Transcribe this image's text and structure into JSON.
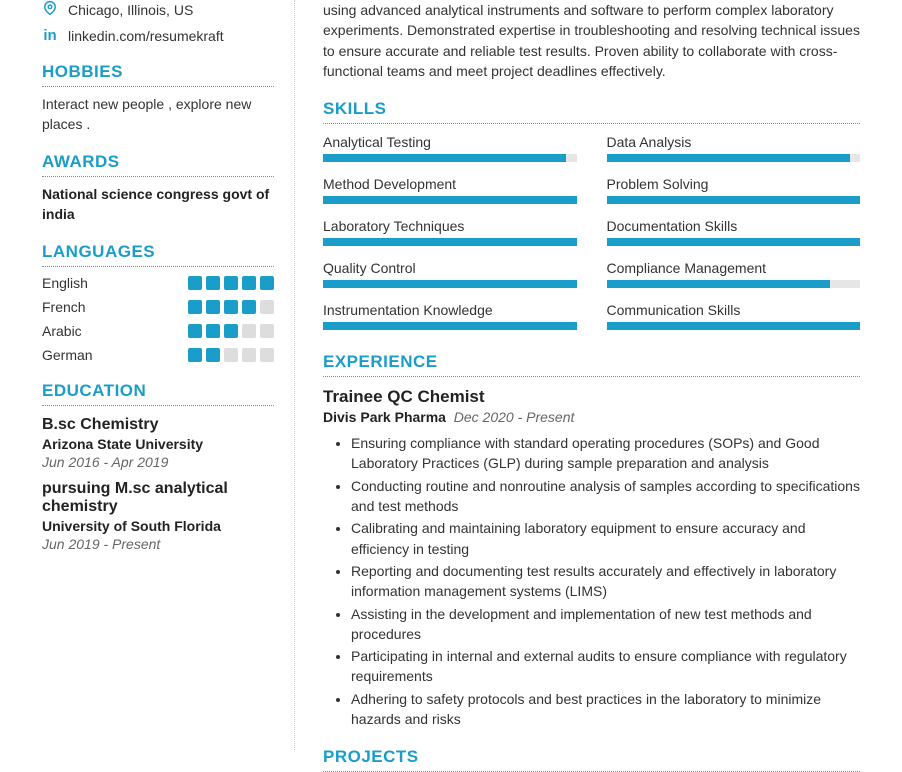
{
  "colors": {
    "accent": "#1b9dc9",
    "text": "#333",
    "muted": "#666",
    "bar_bg": "#e6e6e6"
  },
  "contact": {
    "location": "Chicago, Illinois, US",
    "linkedin": "linkedin.com/resumekraft"
  },
  "sections": {
    "hobbies": "HOBBIES",
    "awards": "AWARDS",
    "languages": "LANGUAGES",
    "education": "EDUCATION",
    "skills": "SKILLS",
    "experience": "EXPERIENCE",
    "projects": "PROJECTS"
  },
  "hobbies_text": "Interact new people , explore new places .",
  "awards": [
    {
      "title": "National science congress govt of india"
    }
  ],
  "languages": [
    {
      "name": "English",
      "level": 5
    },
    {
      "name": "French",
      "level": 4
    },
    {
      "name": "Arabic",
      "level": 3
    },
    {
      "name": "German",
      "level": 2
    }
  ],
  "lang_max": 5,
  "education": [
    {
      "degree": "B.sc Chemistry",
      "school": "Arizona State University",
      "dates": "Jun 2016 - Apr 2019"
    },
    {
      "degree": "pursuing M.sc analytical chemistry",
      "school": "University of South Florida",
      "dates": "Jun 2019 - Present"
    }
  ],
  "summary": "using advanced analytical instruments and software to perform complex laboratory experiments. Demonstrated expertise in troubleshooting and resolving technical issues to ensure accurate and reliable test results. Proven ability to collaborate with cross-functional teams and meet project deadlines effectively.",
  "skills": [
    {
      "name": "Analytical Testing",
      "pct": 96
    },
    {
      "name": "Data Analysis",
      "pct": 96
    },
    {
      "name": "Method Development",
      "pct": 100
    },
    {
      "name": "Problem Solving",
      "pct": 100
    },
    {
      "name": "Laboratory Techniques",
      "pct": 100
    },
    {
      "name": "Documentation Skills",
      "pct": 100
    },
    {
      "name": "Quality Control",
      "pct": 100
    },
    {
      "name": "Compliance Management",
      "pct": 88
    },
    {
      "name": "Instrumentation Knowledge",
      "pct": 100
    },
    {
      "name": "Communication Skills",
      "pct": 100
    }
  ],
  "experience": {
    "title": "Trainee QC Chemist",
    "company": "Divis Park Pharma",
    "dates": "Dec 2020 - Present",
    "bullets": [
      "Ensuring compliance with standard operating procedures (SOPs) and Good Laboratory Practices (GLP) during sample preparation and analysis",
      "Conducting routine and nonroutine analysis of samples according to specifications and test methods",
      "Calibrating and maintaining laboratory equipment to ensure accuracy and efficiency in testing",
      "Reporting and documenting test results accurately and effectively in laboratory information management systems (LIMS)",
      "Assisting in the development and implementation of new test methods and procedures",
      "Participating in internal and external audits to ensure compliance with regulatory requirements",
      "Adhering to safety protocols and best practices in the laboratory to minimize hazards and risks"
    ]
  }
}
